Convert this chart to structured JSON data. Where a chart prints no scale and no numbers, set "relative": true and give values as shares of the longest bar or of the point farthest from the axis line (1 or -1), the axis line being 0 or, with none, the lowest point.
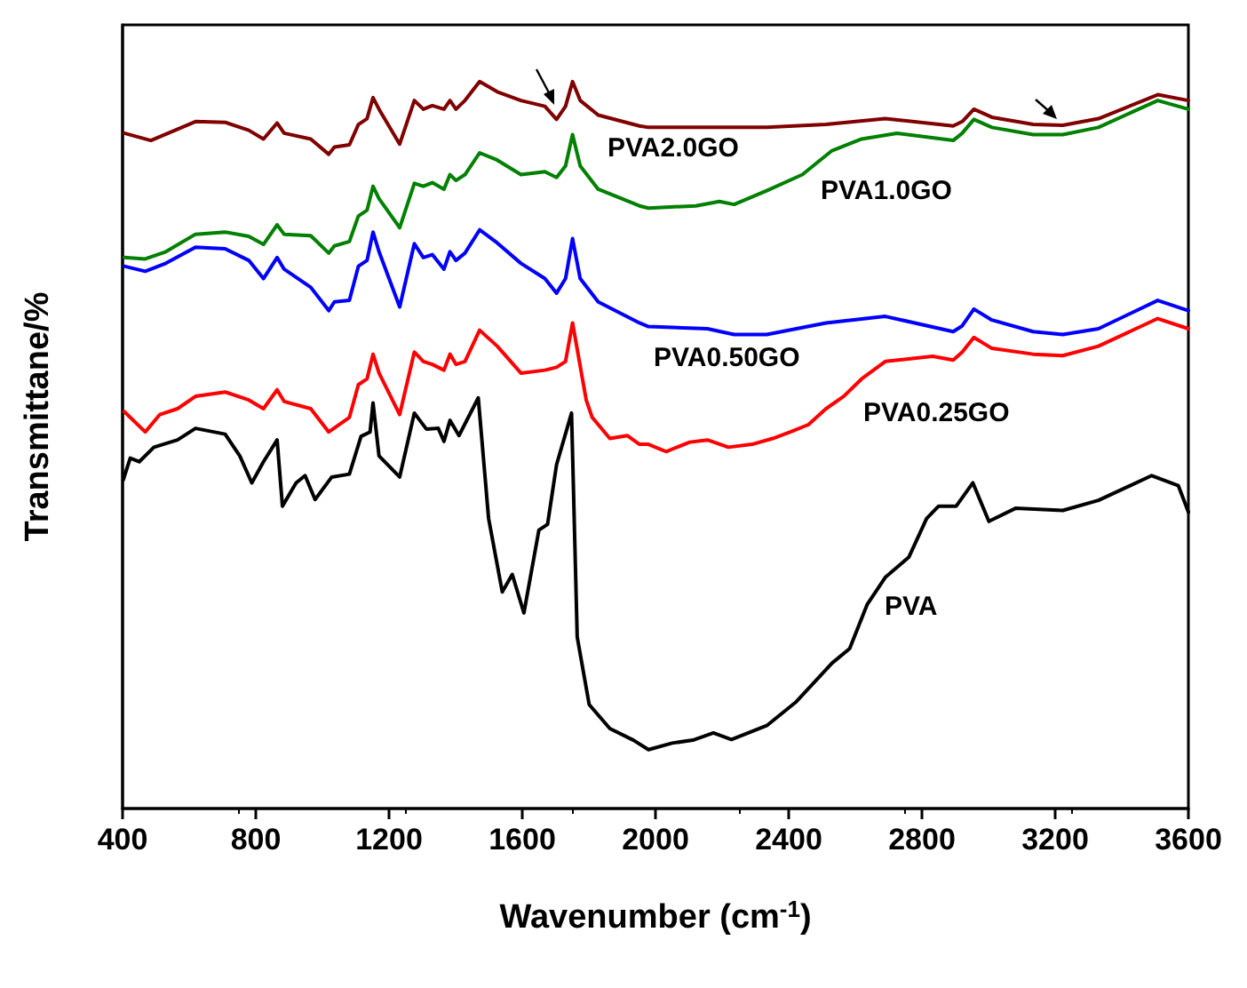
{
  "chart_data": {
    "type": "line",
    "xlabel": "Wavenumber (cm$^{-1}$)",
    "ylabel": "Transmittane/%",
    "relative": true,
    "xlim": [
      400,
      3600
    ],
    "xticks": [
      400,
      800,
      1200,
      1600,
      2000,
      2400,
      2800,
      3200,
      3600
    ],
    "line_style": "solid",
    "marker": "none",
    "legend": false,
    "grid": false,
    "series": [
      {
        "name": "PVA",
        "color": "#000000",
        "x": [
          402,
          423,
          450,
          494,
          565,
          619,
          708,
          752,
          788,
          823,
          864,
          880,
          921,
          948,
          978,
          1028,
          1081,
          1116,
          1143,
          1152,
          1170,
          1232,
          1276,
          1312,
          1348,
          1365,
          1383,
          1410,
          1468,
          1499,
          1540,
          1570,
          1605,
          1650,
          1676,
          1703,
          1748,
          1765,
          1801,
          1863,
          1934,
          1979,
          2050,
          2112,
          2174,
          2228,
          2334,
          2423,
          2530,
          2583,
          2636,
          2690,
          2761,
          2814,
          2850,
          2903,
          2953,
          3001,
          3081,
          3223,
          3330,
          3490,
          3570,
          3600
        ],
        "values": [
          0.452,
          0.482,
          0.477,
          0.497,
          0.507,
          0.523,
          0.515,
          0.485,
          0.448,
          0.477,
          0.507,
          0.416,
          0.448,
          0.458,
          0.425,
          0.456,
          0.46,
          0.512,
          0.518,
          0.558,
          0.485,
          0.456,
          0.544,
          0.522,
          0.523,
          0.505,
          0.534,
          0.513,
          0.565,
          0.399,
          0.298,
          0.322,
          0.269,
          0.383,
          0.391,
          0.473,
          0.544,
          0.236,
          0.143,
          0.11,
          0.094,
          0.081,
          0.09,
          0.094,
          0.104,
          0.095,
          0.114,
          0.147,
          0.2,
          0.22,
          0.281,
          0.318,
          0.346,
          0.399,
          0.416,
          0.416,
          0.448,
          0.395,
          0.413,
          0.41,
          0.424,
          0.458,
          0.444,
          0.408
        ]
      },
      {
        "name": "PVA0.25GO",
        "color": "#ff0000",
        "x": [
          405,
          468,
          512,
          565,
          619,
          708,
          779,
          823,
          864,
          885,
          965,
          1019,
          1081,
          1108,
          1134,
          1152,
          1170,
          1232,
          1276,
          1303,
          1330,
          1365,
          1383,
          1401,
          1428,
          1472,
          1525,
          1596,
          1668,
          1703,
          1730,
          1751,
          1792,
          1810,
          1863,
          1916,
          1952,
          1979,
          2032,
          2103,
          2156,
          2219,
          2290,
          2352,
          2405,
          2459,
          2512,
          2565,
          2619,
          2690,
          2832,
          2894,
          2921,
          2956,
          3010,
          3134,
          3223,
          3330,
          3508,
          3600
        ],
        "values": [
          0.546,
          0.518,
          0.542,
          0.55,
          0.567,
          0.573,
          0.562,
          0.55,
          0.576,
          0.56,
          0.55,
          0.518,
          0.538,
          0.583,
          0.591,
          0.625,
          0.599,
          0.542,
          0.628,
          0.615,
          0.611,
          0.603,
          0.625,
          0.611,
          0.615,
          0.658,
          0.636,
          0.599,
          0.603,
          0.607,
          0.615,
          0.668,
          0.562,
          0.538,
          0.509,
          0.513,
          0.501,
          0.501,
          0.491,
          0.504,
          0.507,
          0.497,
          0.501,
          0.509,
          0.518,
          0.528,
          0.55,
          0.567,
          0.591,
          0.615,
          0.622,
          0.617,
          0.628,
          0.648,
          0.633,
          0.625,
          0.623,
          0.636,
          0.674,
          0.66
        ]
      },
      {
        "name": "PVA0.50GO",
        "color": "#0000ff",
        "x": [
          405,
          468,
          530,
          619,
          708,
          779,
          823,
          864,
          885,
          965,
          1019,
          1036,
          1081,
          1108,
          1134,
          1152,
          1170,
          1232,
          1276,
          1303,
          1330,
          1365,
          1383,
          1401,
          1428,
          1472,
          1525,
          1596,
          1668,
          1703,
          1730,
          1751,
          1774,
          1828,
          1952,
          1979,
          2156,
          2236,
          2334,
          2512,
          2690,
          2894,
          2921,
          2956,
          3010,
          3134,
          3223,
          3330,
          3508,
          3600
        ],
        "values": [
          0.746,
          0.739,
          0.75,
          0.772,
          0.77,
          0.754,
          0.729,
          0.758,
          0.742,
          0.717,
          0.685,
          0.697,
          0.699,
          0.746,
          0.754,
          0.793,
          0.766,
          0.69,
          0.777,
          0.758,
          0.762,
          0.742,
          0.766,
          0.754,
          0.764,
          0.796,
          0.778,
          0.75,
          0.729,
          0.709,
          0.729,
          0.784,
          0.729,
          0.697,
          0.668,
          0.663,
          0.66,
          0.652,
          0.652,
          0.668,
          0.677,
          0.656,
          0.664,
          0.687,
          0.672,
          0.656,
          0.652,
          0.66,
          0.699,
          0.685
        ]
      },
      {
        "name": "PVA1.0GO",
        "color": "#008000",
        "x": [
          405,
          468,
          530,
          619,
          708,
          779,
          823,
          864,
          885,
          965,
          1019,
          1036,
          1081,
          1108,
          1134,
          1152,
          1170,
          1232,
          1276,
          1303,
          1330,
          1365,
          1383,
          1401,
          1428,
          1472,
          1525,
          1596,
          1668,
          1703,
          1730,
          1751,
          1774,
          1828,
          1952,
          1979,
          2121,
          2192,
          2236,
          2334,
          2441,
          2530,
          2619,
          2725,
          2894,
          2921,
          2956,
          3010,
          3134,
          3223,
          3330,
          3508,
          3600
        ],
        "values": [
          0.758,
          0.756,
          0.766,
          0.79,
          0.793,
          0.787,
          0.776,
          0.803,
          0.79,
          0.788,
          0.764,
          0.774,
          0.78,
          0.815,
          0.823,
          0.856,
          0.839,
          0.799,
          0.86,
          0.856,
          0.861,
          0.852,
          0.872,
          0.864,
          0.872,
          0.902,
          0.892,
          0.872,
          0.876,
          0.868,
          0.884,
          0.927,
          0.884,
          0.852,
          0.829,
          0.826,
          0.829,
          0.835,
          0.831,
          0.85,
          0.872,
          0.905,
          0.921,
          0.929,
          0.919,
          0.929,
          0.948,
          0.937,
          0.927,
          0.927,
          0.937,
          0.974,
          0.962
        ]
      },
      {
        "name": "PVA2.0GO",
        "color": "#800000",
        "x": [
          405,
          485,
          619,
          708,
          779,
          823,
          864,
          885,
          965,
          1019,
          1036,
          1081,
          1108,
          1134,
          1152,
          1170,
          1232,
          1276,
          1303,
          1330,
          1365,
          1383,
          1401,
          1428,
          1472,
          1525,
          1596,
          1668,
          1703,
          1730,
          1751,
          1774,
          1828,
          1952,
          1979,
          2334,
          2512,
          2690,
          2894,
          2921,
          2956,
          3010,
          3134,
          3223,
          3330,
          3508,
          3600
        ],
        "values": [
          0.929,
          0.919,
          0.945,
          0.944,
          0.933,
          0.921,
          0.943,
          0.929,
          0.921,
          0.9,
          0.91,
          0.913,
          0.941,
          0.949,
          0.978,
          0.962,
          0.914,
          0.974,
          0.962,
          0.967,
          0.962,
          0.974,
          0.962,
          0.974,
          1.0,
          0.986,
          0.974,
          0.966,
          0.948,
          0.966,
          1.0,
          0.974,
          0.954,
          0.939,
          0.937,
          0.937,
          0.941,
          0.949,
          0.939,
          0.945,
          0.962,
          0.951,
          0.941,
          0.94,
          0.949,
          0.982,
          0.974
        ]
      }
    ]
  }
}
